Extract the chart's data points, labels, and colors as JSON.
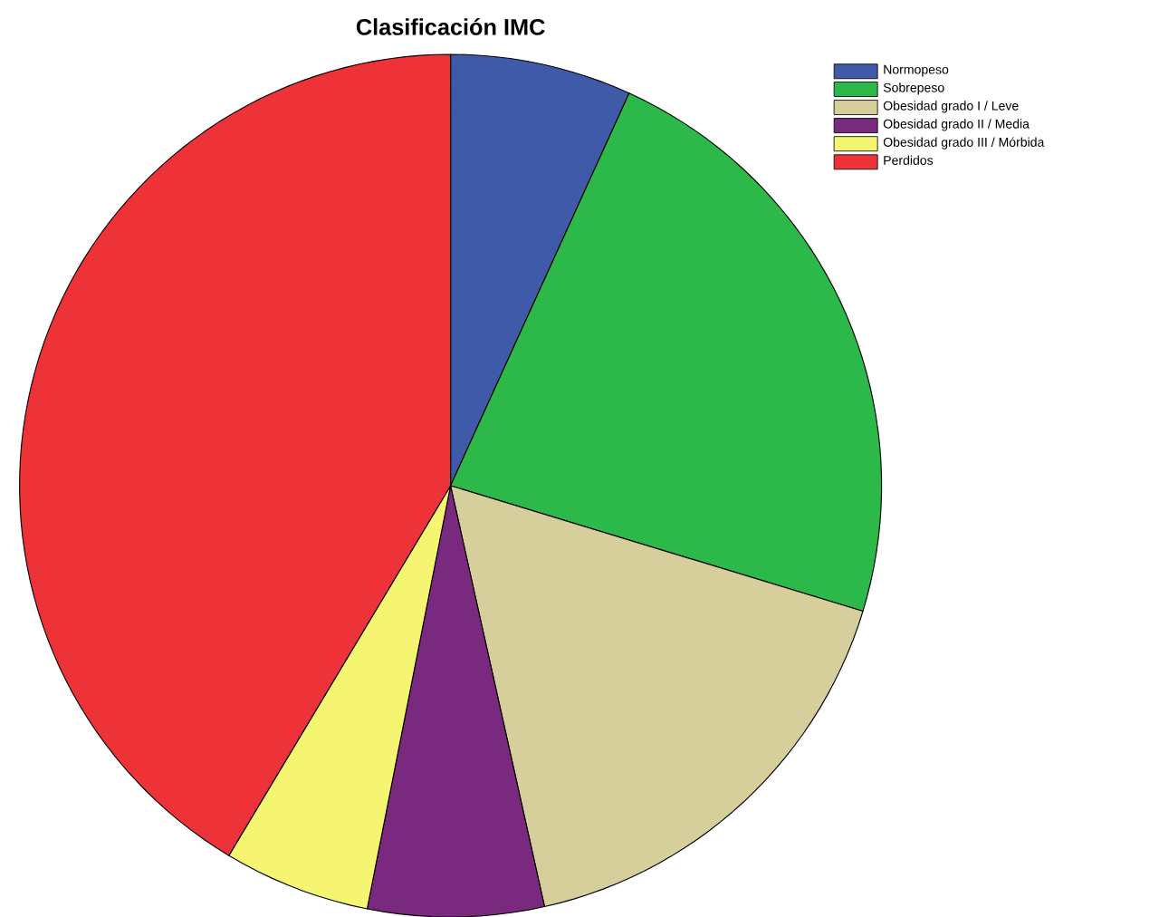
{
  "chart_data": {
    "type": "pie",
    "title": "Clasificación IMC",
    "categories": [
      "Normopeso",
      "Sobrepeso",
      "Obesidad grado I / Leve",
      "Obesidad grado II / Media",
      "Obesidad grado III / Mórbida",
      "Perdidos"
    ],
    "values": [
      6.8,
      22.9,
      16.8,
      6.6,
      5.5,
      41.4
    ],
    "colors": [
      "#3f5aa8",
      "#2db84a",
      "#d6cf9b",
      "#7a2a7e",
      "#f5f571",
      "#ee3338"
    ],
    "legend": "top right"
  }
}
